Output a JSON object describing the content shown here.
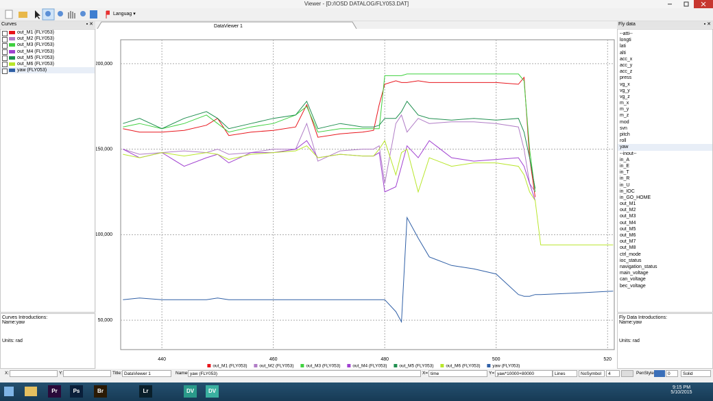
{
  "window": {
    "title": "Viewer - [D:/IOSD DATALOG/FLY053.DAT]"
  },
  "toolbar": {
    "language": "Languag"
  },
  "curves_panel": {
    "title": "Curves",
    "intro_title": "Curves Introductions:",
    "name": "Name:yaw",
    "units": "Units: rad"
  },
  "tab": {
    "title": "DataViewer 1"
  },
  "chart_data": {
    "type": "line",
    "x": [
      433,
      436,
      440,
      444,
      448,
      450,
      452,
      456,
      460,
      464,
      466,
      468,
      472,
      476,
      478,
      479,
      480,
      482,
      483,
      484,
      486,
      488,
      492,
      496,
      500,
      504,
      505,
      506,
      507,
      508,
      515,
      521
    ],
    "xlim": [
      432.6,
      521.2
    ],
    "xticks": [
      440,
      460,
      480,
      500,
      520
    ],
    "ylim": [
      32800,
      214000
    ],
    "yticks": [
      {
        "value": 50000,
        "label": "50,000"
      },
      {
        "value": 100000,
        "label": "100,000"
      },
      {
        "value": 150000,
        "label": "150,000"
      },
      {
        "value": 200000,
        "label": "200,000"
      }
    ],
    "grid": true,
    "legend": "bottom",
    "series": [
      {
        "name": "out_M1 (FLY053)",
        "color": "#e8141b",
        "values": [
          162000,
          160000,
          160000,
          161000,
          164000,
          168000,
          158000,
          160000,
          161000,
          163000,
          176000,
          157000,
          159000,
          160000,
          161000,
          176000,
          188000,
          190000,
          189000,
          189000,
          190000,
          189000,
          189000,
          189000,
          189000,
          188000,
          192000,
          145000,
          122000,
          null,
          null,
          null
        ]
      },
      {
        "name": "out_M2 (FLY053)",
        "color": "#b07cc6",
        "values": [
          150000,
          147000,
          148000,
          149000,
          148000,
          150000,
          147000,
          148000,
          150000,
          150000,
          165000,
          143000,
          149000,
          150000,
          150000,
          152000,
          130000,
          165000,
          170000,
          160000,
          168000,
          165000,
          166000,
          166000,
          165000,
          163000,
          150000,
          130000,
          125000,
          null,
          null,
          null
        ]
      },
      {
        "name": "out_M3 (FLY053)",
        "color": "#3fd13f",
        "values": [
          163000,
          165000,
          162000,
          165000,
          170000,
          165000,
          160000,
          163000,
          165000,
          170000,
          175000,
          160000,
          162000,
          162000,
          162000,
          162000,
          193000,
          193000,
          193000,
          194000,
          194000,
          194000,
          194000,
          194000,
          194000,
          194000,
          190000,
          150000,
          125000,
          null,
          null,
          null
        ]
      },
      {
        "name": "out_M4 (FLY053)",
        "color": "#a040d0",
        "values": [
          150000,
          145000,
          148000,
          140000,
          145000,
          147000,
          142000,
          148000,
          148000,
          150000,
          155000,
          145000,
          147000,
          146000,
          146000,
          148000,
          125000,
          128000,
          140000,
          152000,
          145000,
          155000,
          145000,
          143000,
          144000,
          145000,
          140000,
          130000,
          120000,
          null,
          null,
          null
        ]
      },
      {
        "name": "out_M5 (FLY053)",
        "color": "#1f8f4f",
        "values": [
          165000,
          168000,
          162000,
          168000,
          172000,
          168000,
          162000,
          165000,
          168000,
          170000,
          178000,
          162000,
          165000,
          163000,
          163000,
          164000,
          168000,
          168000,
          172000,
          178000,
          170000,
          168000,
          167000,
          168000,
          167000,
          168000,
          160000,
          145000,
          127000,
          null,
          null,
          null
        ]
      },
      {
        "name": "out_M6 (FLY053)",
        "color": "#b8e62a",
        "values": [
          147000,
          145000,
          148000,
          146000,
          148000,
          147000,
          144000,
          147000,
          148000,
          149000,
          152000,
          145000,
          147000,
          146000,
          146000,
          150000,
          155000,
          135000,
          148000,
          150000,
          125000,
          145000,
          140000,
          142000,
          142000,
          140000,
          135000,
          125000,
          120000,
          94000,
          94000,
          94000
        ]
      },
      {
        "name": "yaw (FLY053)",
        "color": "#2f5fa6",
        "values": [
          62000,
          63000,
          62000,
          62000,
          62000,
          63000,
          62000,
          62000,
          62000,
          62000,
          62000,
          62000,
          62000,
          62000,
          62000,
          62000,
          62000,
          55000,
          49000,
          110000,
          98000,
          87000,
          82000,
          80000,
          77000,
          65000,
          64000,
          64000,
          65000,
          65000,
          66000,
          67000
        ]
      }
    ]
  },
  "fly_panel": {
    "title": "Fly data",
    "items": [
      "--atti--",
      "longti",
      "lati",
      "alti",
      "acc_x",
      "acc_y",
      "acc_z",
      "press",
      "vg_x",
      "vg_y",
      "vg_z",
      "m_x",
      "m_y",
      "m_z",
      "mod",
      "svn",
      "pitch",
      "roll",
      "yaw",
      "--inout--",
      "in_A",
      "in_E",
      "in_T",
      "in_R",
      "in_U",
      "in_IOC",
      "in_GO_HOME",
      "out_M1",
      "out_M2",
      "out_M3",
      "out_M4",
      "out_M5",
      "out_M6",
      "out_M7",
      "out_M8",
      "ctrl_mode",
      "ioc_status",
      "navigation_status",
      "main_voltage",
      "can_voltage",
      "bec_voltage"
    ],
    "selected": 18,
    "intro_title": "Fly Data Introductions:",
    "name": "Name:yaw",
    "units": "Units: rad"
  },
  "status_bar": {
    "x_label": "X:",
    "y_label": "Y:",
    "title_label": "Title:",
    "title_value": "DataViewer 1",
    "name_label": "Name=",
    "name_value": "yaw (FLY053)",
    "x_eq": "X=",
    "x_value": "time",
    "y_eq": "Y=",
    "y_value": "yaw*10000+80000",
    "line_style": "Lines",
    "symbol": "NoSymbol",
    "size": "4",
    "pen_style_label": "PenStyle:",
    "pen_width": "0",
    "pen_style": "Solid"
  },
  "taskbar": {
    "apps": [
      "Pr",
      "Ps",
      "Br",
      "Lr",
      "DV",
      "DV"
    ],
    "time": "9:15 PM",
    "date": "5/10/2015"
  }
}
